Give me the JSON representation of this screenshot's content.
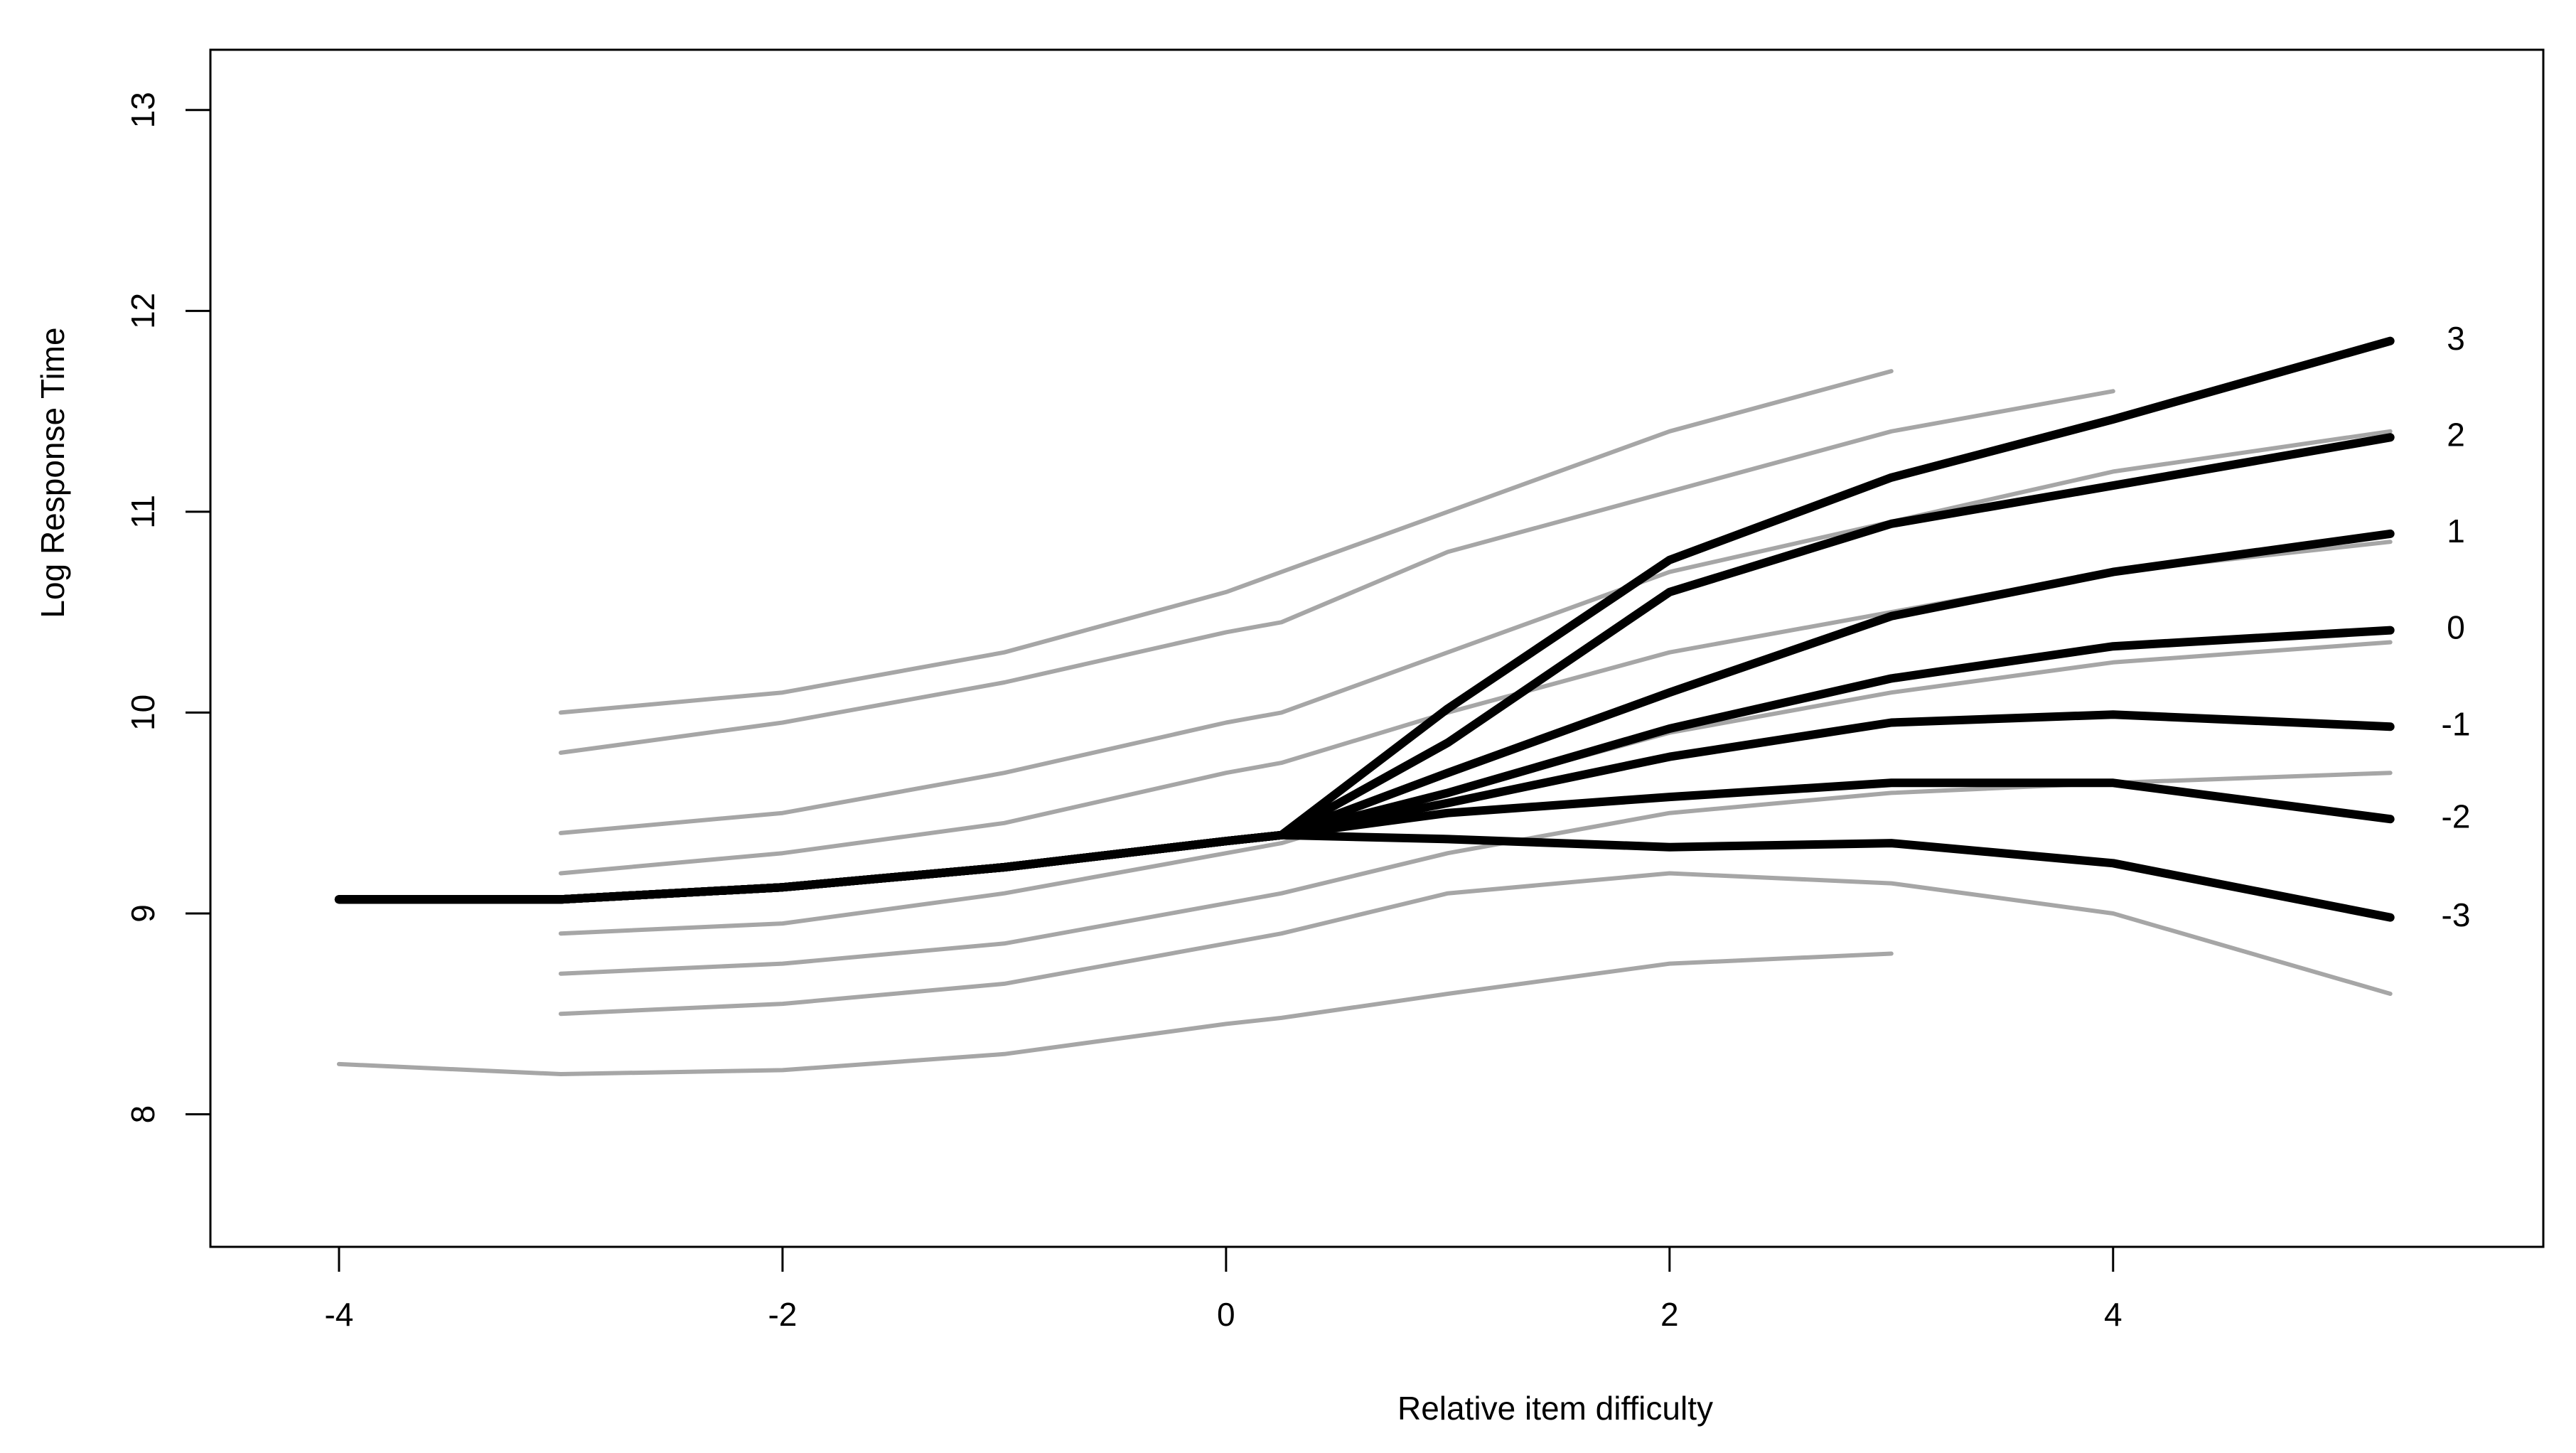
{
  "chart_data": {
    "type": "line",
    "x_label": "Relative item difficulty",
    "y_label": "Log Response Time",
    "x": [
      -4,
      -3,
      -2,
      -1,
      0,
      0.25,
      1,
      2,
      3,
      4,
      5.25
    ],
    "xlim": [
      -4.58,
      5.94
    ],
    "ylim": [
      7.34,
      13.3
    ],
    "xticks": [
      -4,
      -2,
      0,
      2,
      4
    ],
    "yticks": [
      8,
      9,
      10,
      11,
      12,
      13
    ],
    "series": [
      {
        "color": "#a6a6a6",
        "values": [
          null,
          10.0,
          10.1,
          10.3,
          10.6,
          10.7,
          11.0,
          11.4,
          11.7,
          null,
          null
        ]
      },
      {
        "color": "#a6a6a6",
        "values": [
          null,
          9.8,
          9.95,
          10.15,
          10.4,
          10.45,
          10.8,
          11.1,
          11.4,
          11.6,
          null
        ]
      },
      {
        "color": "#a6a6a6",
        "values": [
          null,
          9.4,
          9.5,
          9.7,
          9.95,
          10.0,
          10.3,
          10.7,
          10.95,
          11.2,
          11.4
        ]
      },
      {
        "color": "#a6a6a6",
        "values": [
          null,
          9.2,
          9.3,
          9.45,
          9.7,
          9.75,
          10.0,
          10.3,
          10.5,
          10.7,
          10.85
        ]
      },
      {
        "color": "#a6a6a6",
        "values": [
          null,
          8.9,
          8.95,
          9.1,
          9.3,
          9.35,
          9.6,
          9.9,
          10.1,
          10.25,
          10.35
        ]
      },
      {
        "color": "#a6a6a6",
        "values": [
          null,
          8.7,
          8.75,
          8.85,
          9.05,
          9.1,
          9.3,
          9.5,
          9.6,
          9.65,
          9.7
        ]
      },
      {
        "color": "#a6a6a6",
        "values": [
          null,
          8.5,
          8.55,
          8.65,
          8.85,
          8.9,
          9.1,
          9.2,
          9.15,
          9.0,
          8.6
        ]
      },
      {
        "color": "#a6a6a6",
        "values": [
          8.25,
          8.2,
          8.22,
          8.3,
          8.45,
          8.48,
          8.6,
          8.75,
          8.8,
          null,
          null
        ]
      },
      {
        "name": "3",
        "color": "#000000",
        "values": [
          9.07,
          9.07,
          9.13,
          9.23,
          9.36,
          9.39,
          10.02,
          10.76,
          11.17,
          11.46,
          11.85
        ]
      },
      {
        "name": "2",
        "color": "#000000",
        "values": [
          9.07,
          9.07,
          9.13,
          9.23,
          9.36,
          9.39,
          9.85,
          10.6,
          10.94,
          11.13,
          11.37
        ]
      },
      {
        "name": "1",
        "color": "#000000",
        "values": [
          9.07,
          9.07,
          9.13,
          9.23,
          9.36,
          9.39,
          9.7,
          10.1,
          10.48,
          10.7,
          10.89
        ]
      },
      {
        "name": "0",
        "color": "#000000",
        "values": [
          9.07,
          9.07,
          9.13,
          9.23,
          9.36,
          9.39,
          9.6,
          9.92,
          10.17,
          10.33,
          10.41
        ]
      },
      {
        "name": "-1",
        "color": "#000000",
        "values": [
          9.07,
          9.07,
          9.13,
          9.23,
          9.36,
          9.39,
          9.55,
          9.78,
          9.95,
          9.99,
          9.93
        ]
      },
      {
        "name": "-2",
        "color": "#000000",
        "values": [
          9.07,
          9.07,
          9.13,
          9.23,
          9.36,
          9.39,
          9.5,
          9.58,
          9.65,
          9.65,
          9.47
        ]
      },
      {
        "name": "-3",
        "color": "#000000",
        "values": [
          9.07,
          9.07,
          9.13,
          9.23,
          9.36,
          9.39,
          9.37,
          9.33,
          9.35,
          9.25,
          8.98
        ]
      }
    ]
  }
}
